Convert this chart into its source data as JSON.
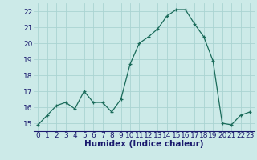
{
  "x": [
    0,
    1,
    2,
    3,
    4,
    5,
    6,
    7,
    8,
    9,
    10,
    11,
    12,
    13,
    14,
    15,
    16,
    17,
    18,
    19,
    20,
    21,
    22,
    23
  ],
  "y": [
    14.9,
    15.5,
    16.1,
    16.3,
    15.9,
    17.0,
    16.3,
    16.3,
    15.7,
    16.5,
    18.7,
    20.0,
    20.4,
    20.9,
    21.7,
    22.1,
    22.1,
    21.2,
    20.4,
    18.9,
    15.0,
    14.9,
    15.5,
    15.7
  ],
  "xlabel": "Humidex (Indice chaleur)",
  "ylim": [
    14.5,
    22.5
  ],
  "xlim": [
    -0.5,
    23.5
  ],
  "yticks": [
    15,
    16,
    17,
    18,
    19,
    20,
    21,
    22
  ],
  "xticks": [
    0,
    1,
    2,
    3,
    4,
    5,
    6,
    7,
    8,
    9,
    10,
    11,
    12,
    13,
    14,
    15,
    16,
    17,
    18,
    19,
    20,
    21,
    22,
    23
  ],
  "line_color": "#1a6b5a",
  "marker": "+",
  "bg_color": "#cceae8",
  "grid_color": "#aad4d2",
  "label_color": "#1a1a6e",
  "tick_fontsize": 6.5,
  "xlabel_fontsize": 7.5
}
